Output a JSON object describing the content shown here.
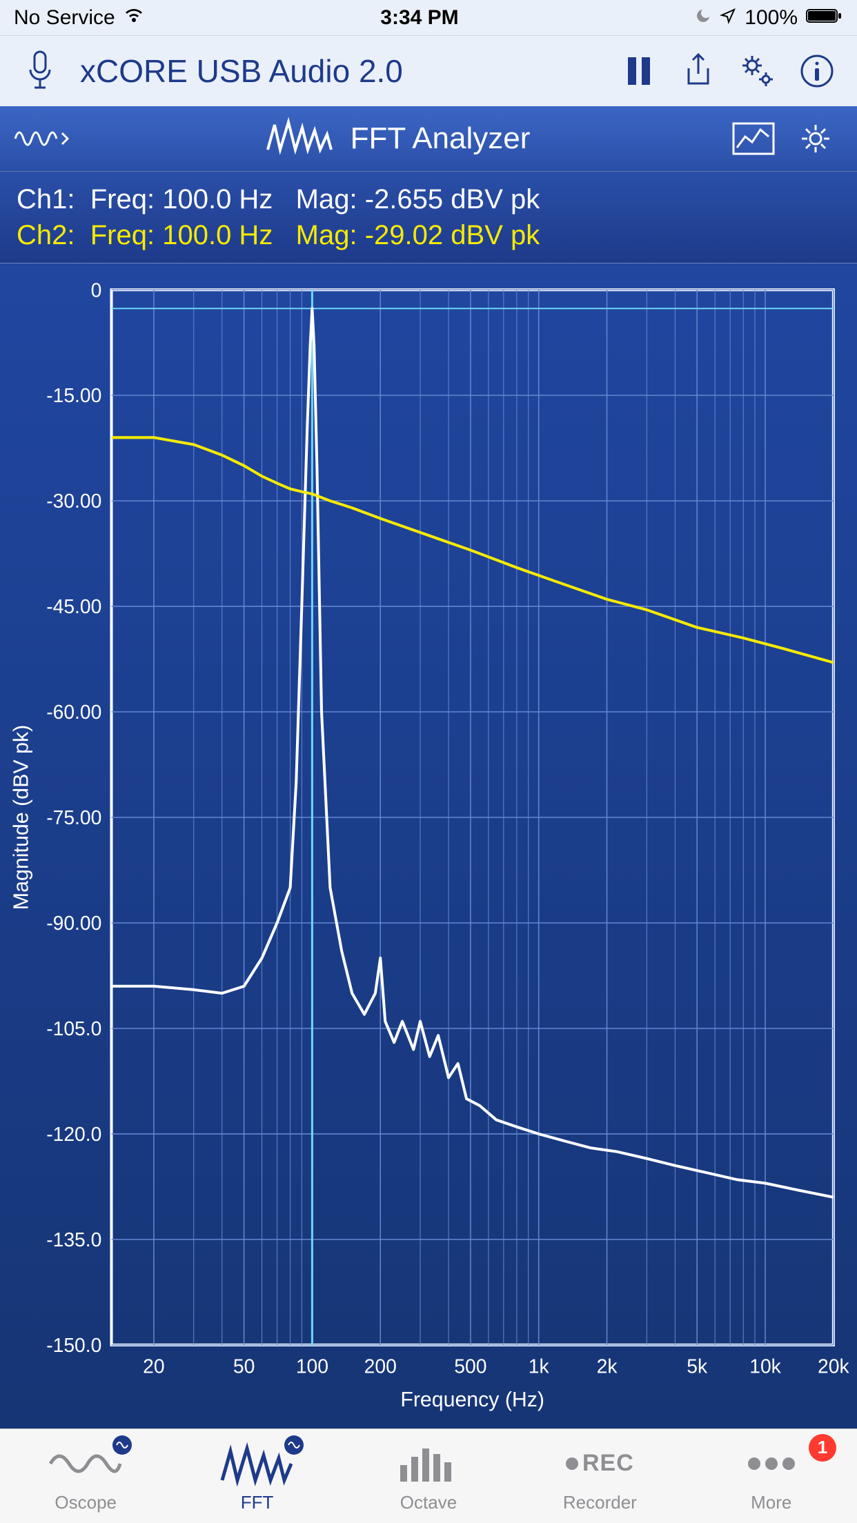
{
  "status_bar": {
    "carrier": "No Service",
    "time": "3:34 PM",
    "battery_pct": "100%"
  },
  "top_toolbar": {
    "title": "xCORE USB Audio 2.0"
  },
  "blue_bar": {
    "title": "FFT Analyzer"
  },
  "readout": {
    "ch1": {
      "label": "Ch1:",
      "freq_label": "Freq:",
      "freq_value": "100.0 Hz",
      "mag_label": "Mag:",
      "mag_value": "-2.655 dBV pk",
      "color": "#ffffff"
    },
    "ch2": {
      "label": "Ch2:",
      "freq_label": "Freq:",
      "freq_value": "100.0 Hz",
      "mag_label": "Mag:",
      "mag_value": "-29.02 dBV pk",
      "color": "#f7ea00"
    }
  },
  "chart": {
    "type": "line",
    "x_scale": "log",
    "xlabel": "Frequency (Hz)",
    "ylabel": "Magnitude (dBV pk)",
    "xlim": [
      13,
      20000
    ],
    "ylim": [
      -150,
      0
    ],
    "ytick_step": 15,
    "ytick_labels": [
      "0",
      "-15.00",
      "-30.00",
      "-45.00",
      "-60.00",
      "-75.00",
      "-90.00",
      "-105.0",
      "-120.0",
      "-135.0",
      "-150.0"
    ],
    "xtick_values": [
      20,
      50,
      100,
      200,
      500,
      1000,
      2000,
      5000,
      10000,
      20000
    ],
    "xtick_labels": [
      "20",
      "50",
      "100",
      "200",
      "500",
      "1k",
      "2k",
      "5k",
      "10k",
      "20k"
    ],
    "x_gridlines_minor": [
      30,
      40,
      60,
      70,
      80,
      90,
      300,
      400,
      600,
      700,
      800,
      900,
      3000,
      4000,
      6000,
      7000,
      8000,
      9000
    ],
    "cursor_x": 100,
    "cursor_color": "#6dd5fa",
    "plot_bg": "#1f3f90",
    "grid_color": "#6487d1",
    "axis_color": "#ffffff",
    "label_fontsize": 30,
    "tick_fontsize": 28,
    "line_width": 4,
    "series": [
      {
        "name": "ch1",
        "color": "#ffffff",
        "x": [
          13,
          20,
          30,
          40,
          50,
          60,
          70,
          80,
          85,
          90,
          95,
          98,
          100,
          102,
          105,
          110,
          120,
          135,
          150,
          170,
          190,
          200,
          210,
          230,
          250,
          280,
          300,
          330,
          360,
          400,
          440,
          480,
          550,
          650,
          800,
          1000,
          1300,
          1700,
          2200,
          3000,
          4000,
          5500,
          7500,
          10000,
          14000,
          20000
        ],
        "y": [
          -99,
          -99,
          -99.5,
          -100,
          -99,
          -95,
          -90,
          -85,
          -70,
          -45,
          -20,
          -8,
          -2.655,
          -8,
          -25,
          -60,
          -85,
          -94,
          -100,
          -103,
          -100,
          -95,
          -104,
          -107,
          -104,
          -108,
          -104,
          -109,
          -106,
          -112,
          -110,
          -115,
          -116,
          -118,
          -119,
          -120,
          -121,
          -122,
          -122.5,
          -123.5,
          -124.5,
          -125.5,
          -126.5,
          -127,
          -128,
          -129
        ]
      },
      {
        "name": "ch2",
        "color": "#f7ea00",
        "x": [
          13,
          20,
          30,
          40,
          50,
          60,
          70,
          80,
          90,
          100,
          120,
          150,
          200,
          300,
          500,
          800,
          1200,
          2000,
          3000,
          5000,
          8000,
          12000,
          20000
        ],
        "y": [
          -21,
          -21,
          -22,
          -23.5,
          -25,
          -26.5,
          -27.5,
          -28.3,
          -28.7,
          -29.02,
          -30,
          -31,
          -32.5,
          -34.5,
          -37,
          -39.5,
          -41.5,
          -44,
          -45.5,
          -48,
          -49.5,
          -51,
          -53
        ]
      }
    ]
  },
  "tabs": [
    {
      "key": "oscope",
      "label": "Oscope",
      "active": false
    },
    {
      "key": "fft",
      "label": "FFT",
      "active": true
    },
    {
      "key": "octave",
      "label": "Octave",
      "active": false
    },
    {
      "key": "recorder",
      "label": "Recorder",
      "active": false,
      "rec_label": "REC"
    },
    {
      "key": "more",
      "label": "More",
      "active": false,
      "badge": "1"
    }
  ]
}
